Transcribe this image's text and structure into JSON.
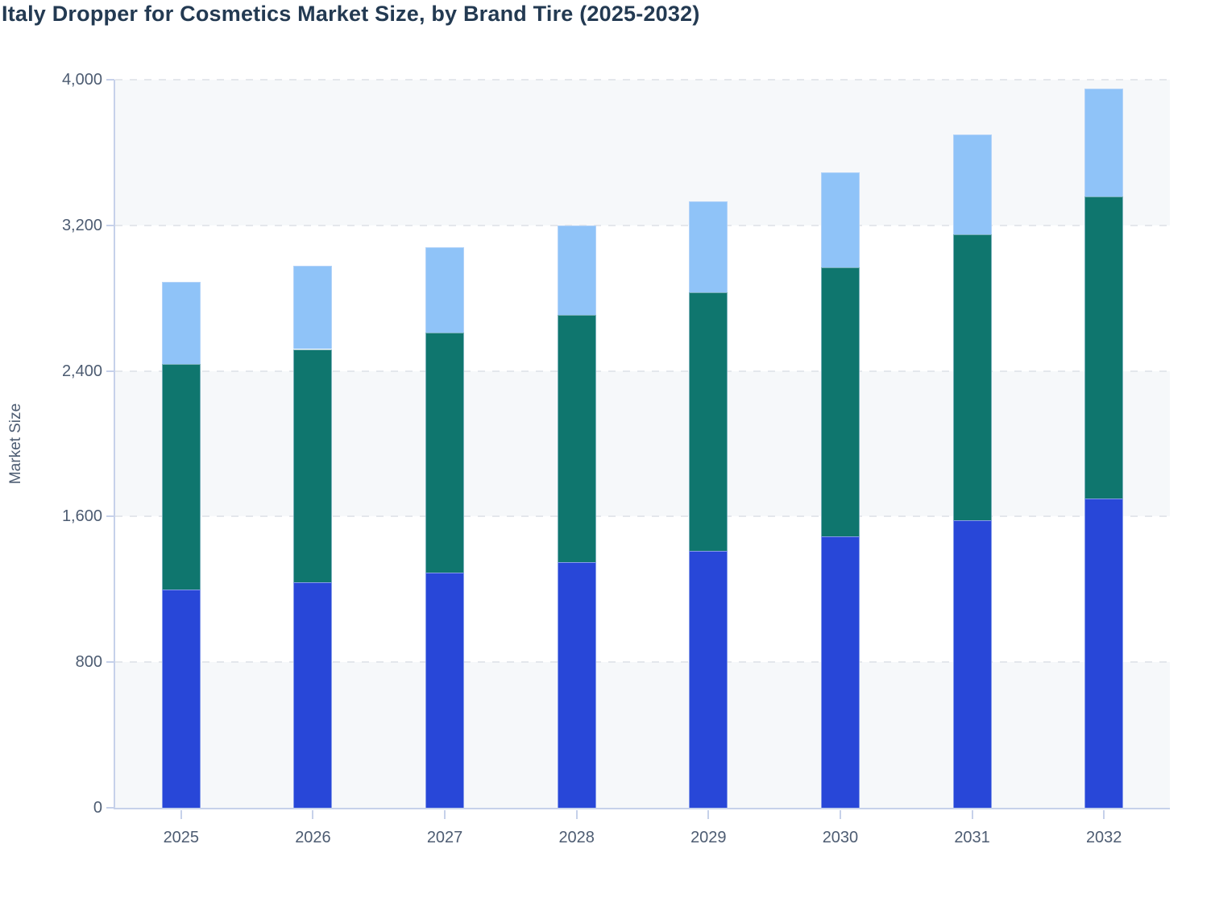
{
  "title": "Italy Dropper for Cosmetics Market Size, by Brand Tire (2025-2032)",
  "y_axis_title": "Market Size",
  "colors": {
    "title_text": "#233a52",
    "axis_text": "#4d5c72",
    "axis_line": "#c6d1ea",
    "gridline": "#e4e7ec",
    "band_shade": "#f6f8fa",
    "bar_blue": "#2847d8",
    "bar_teal": "#0f766e",
    "bar_light_blue": "#8fc3f8"
  },
  "chart_data": {
    "type": "bar",
    "stacked": true,
    "title": "Italy Dropper for Cosmetics Market Size, by Brand Tire (2025-2032)",
    "xlabel": "",
    "ylabel": "Market Size",
    "categories": [
      "2025",
      "2026",
      "2027",
      "2028",
      "2029",
      "2030",
      "2031",
      "2032"
    ],
    "series": [
      {
        "name": "segment-bottom-blue",
        "color": "#2847d8",
        "values": [
          1200,
          1240,
          1290,
          1350,
          1410,
          1490,
          1580,
          1700
        ]
      },
      {
        "name": "segment-middle-teal",
        "color": "#0f766e",
        "values": [
          1240,
          1280,
          1320,
          1360,
          1420,
          1480,
          1570,
          1660
        ]
      },
      {
        "name": "segment-top-light-blue",
        "color": "#8fc3f8",
        "values": [
          450,
          460,
          470,
          490,
          500,
          520,
          550,
          590
        ]
      }
    ],
    "totals": [
      2890,
      2980,
      3080,
      3200,
      3330,
      3490,
      3700,
      3950
    ],
    "ylim": [
      0,
      4000
    ],
    "yticks": [
      0,
      800,
      1600,
      2400,
      3200,
      4000
    ],
    "yticklabels": [
      "0",
      "800",
      "1,600",
      "2,400",
      "3,200",
      "4,000"
    ],
    "grid": "dashed horizontal gridlines at each y tick",
    "legend": "none",
    "plot_background": "alternating horizontal bands (shaded, white) from bottom"
  }
}
